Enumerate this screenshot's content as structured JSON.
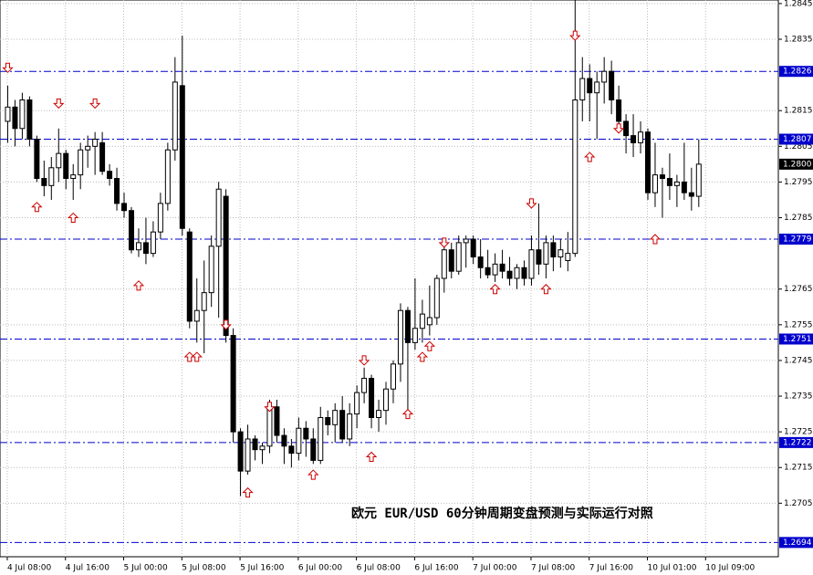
{
  "chart_data": {
    "type": "candlestick",
    "annotation": "欧元 EUR/USD   60分钟周期变盘预测与实际运行对照",
    "ylim": [
      1.269,
      1.2846
    ],
    "yticks": [
      1.2845,
      1.2835,
      1.2815,
      1.2805,
      1.2795,
      1.2785,
      1.2765,
      1.2755,
      1.2745,
      1.2735,
      1.2725,
      1.2715,
      1.2705
    ],
    "xlim": [
      -1,
      106
    ],
    "xticks": [
      {
        "value": 0,
        "label": "4 Jul 08:00"
      },
      {
        "value": 8,
        "label": "4 Jul 16:00"
      },
      {
        "value": 16,
        "label": "5 Jul 00:00"
      },
      {
        "value": 24,
        "label": "5 Jul 08:00"
      },
      {
        "value": 32,
        "label": "5 Jul 16:00"
      },
      {
        "value": 40,
        "label": "6 Jul 00:00"
      },
      {
        "value": 48,
        "label": "6 Jul 08:00"
      },
      {
        "value": 56,
        "label": "6 Jul 16:00"
      },
      {
        "value": 64,
        "label": "7 Jul 00:00"
      },
      {
        "value": 72,
        "label": "7 Jul 08:00"
      },
      {
        "value": 80,
        "label": "7 Jul 16:00"
      },
      {
        "value": 88,
        "label": "10 Jul 01:00"
      },
      {
        "value": 96,
        "label": "10 Jul 09:00"
      }
    ],
    "grid": true,
    "up_color": "#ffffff",
    "down_color": "#000000",
    "open": [
      1.2812,
      1.2816,
      1.281,
      1.2818,
      1.2807,
      1.2796,
      1.2794,
      1.2799,
      1.2803,
      1.2796,
      1.2797,
      1.2804,
      1.2805,
      1.2806,
      1.2798,
      1.2796,
      1.2789,
      1.2787,
      1.2776,
      1.2778,
      1.2775,
      1.2781,
      1.2789,
      1.2804,
      1.2822,
      1.2781,
      1.2756,
      1.2759,
      1.2764,
      1.2777,
      1.2791,
      1.2752,
      1.2725,
      1.2714,
      1.2723,
      1.272,
      1.2721,
      1.2732,
      1.2724,
      1.2721,
      1.2719,
      1.2726,
      1.2723,
      1.2717,
      1.2729,
      1.2727,
      1.2731,
      1.2723,
      1.273,
      1.2736,
      1.274,
      1.2729,
      1.2731,
      1.2737,
      1.2744,
      1.2759,
      1.275,
      1.2754,
      1.2755,
      1.2757,
      1.2768,
      1.2776,
      1.277,
      1.2778,
      1.2779,
      1.2774,
      1.2771,
      1.2769,
      1.2772,
      1.277,
      1.2768,
      1.2771,
      1.2768,
      1.2776,
      1.2772,
      1.2778,
      1.2774,
      1.2773,
      1.2775,
      1.2818,
      1.2824,
      1.282,
      1.2823,
      1.2826,
      1.2818,
      1.2812,
      1.2808,
      1.2806,
      1.2809,
      1.2792,
      1.2797,
      1.2796,
      1.2794,
      1.2795,
      1.2792,
      1.2791
    ],
    "high": [
      1.2822,
      1.2818,
      1.282,
      1.2819,
      1.2808,
      1.2801,
      1.2802,
      1.281,
      1.2804,
      1.28,
      1.2806,
      1.2808,
      1.2809,
      1.2809,
      1.28,
      1.2799,
      1.2792,
      1.2788,
      1.2782,
      1.2785,
      1.2784,
      1.2792,
      1.2806,
      1.283,
      1.2836,
      1.2782,
      1.2768,
      1.2773,
      1.278,
      1.2795,
      1.2793,
      1.2754,
      1.2726,
      1.2727,
      1.2724,
      1.2722,
      1.2734,
      1.2734,
      1.2726,
      1.2723,
      1.2729,
      1.2728,
      1.2726,
      1.2732,
      1.2731,
      1.2733,
      1.2735,
      1.2733,
      1.2738,
      1.2743,
      1.2741,
      1.2734,
      1.2739,
      1.2745,
      1.2761,
      1.276,
      1.2768,
      1.2762,
      1.2766,
      1.2769,
      1.2779,
      1.2778,
      1.278,
      1.278,
      1.278,
      1.2779,
      1.2776,
      1.2775,
      1.2776,
      1.2774,
      1.2772,
      1.2773,
      1.278,
      1.2789,
      1.278,
      1.278,
      1.2779,
      1.2781,
      1.2846,
      1.283,
      1.2828,
      1.2826,
      1.283,
      1.2829,
      1.2822,
      1.2814,
      1.2814,
      1.2812,
      1.281,
      1.2806,
      1.2799,
      1.2803,
      1.2797,
      1.2806,
      1.2799,
      1.2807
    ],
    "low": [
      1.2806,
      1.2805,
      1.2807,
      1.2805,
      1.2795,
      1.2791,
      1.279,
      1.2795,
      1.2793,
      1.279,
      1.2793,
      1.2799,
      1.2797,
      1.2797,
      1.2794,
      1.2787,
      1.2785,
      1.2775,
      1.2774,
      1.2772,
      1.2774,
      1.2779,
      1.2787,
      1.2801,
      1.278,
      1.2754,
      1.275,
      1.2747,
      1.276,
      1.2757,
      1.275,
      1.2722,
      1.2707,
      1.2713,
      1.2717,
      1.2716,
      1.2719,
      1.2722,
      1.2716,
      1.2715,
      1.2717,
      1.2718,
      1.2716,
      1.2716,
      1.2724,
      1.2722,
      1.2722,
      1.2721,
      1.2726,
      1.2733,
      1.2726,
      1.2725,
      1.2727,
      1.2733,
      1.2739,
      1.2731,
      1.2748,
      1.275,
      1.2752,
      1.2755,
      1.2764,
      1.2768,
      1.2769,
      1.2771,
      1.2772,
      1.2768,
      1.2768,
      1.2767,
      1.2768,
      1.2766,
      1.2765,
      1.2766,
      1.2766,
      1.2769,
      1.2768,
      1.277,
      1.2771,
      1.277,
      1.2774,
      1.2812,
      1.2812,
      1.2807,
      1.2817,
      1.2814,
      1.281,
      1.2803,
      1.2802,
      1.2803,
      1.279,
      1.2788,
      1.2785,
      1.279,
      1.2788,
      1.279,
      1.2787,
      1.2788
    ],
    "close": [
      1.2816,
      1.281,
      1.2818,
      1.2807,
      1.2796,
      1.2794,
      1.2799,
      1.2803,
      1.2796,
      1.2797,
      1.2804,
      1.2805,
      1.2807,
      1.2798,
      1.2796,
      1.2789,
      1.2787,
      1.2776,
      1.2778,
      1.2775,
      1.2781,
      1.2789,
      1.2804,
      1.2823,
      1.2782,
      1.2756,
      1.2759,
      1.2764,
      1.2777,
      1.2793,
      1.2752,
      1.2725,
      1.2714,
      1.2723,
      1.272,
      1.2721,
      1.2732,
      1.2724,
      1.2721,
      1.2719,
      1.2726,
      1.2723,
      1.2717,
      1.2729,
      1.2727,
      1.2731,
      1.2723,
      1.273,
      1.2736,
      1.274,
      1.2729,
      1.2731,
      1.2737,
      1.2744,
      1.2759,
      1.275,
      1.2754,
      1.2758,
      1.2757,
      1.2768,
      1.2776,
      1.277,
      1.2778,
      1.2779,
      1.2774,
      1.2771,
      1.2769,
      1.2772,
      1.277,
      1.2768,
      1.2771,
      1.2768,
      1.2776,
      1.2772,
      1.2778,
      1.2774,
      1.2776,
      1.2775,
      1.2818,
      1.2824,
      1.282,
      1.2823,
      1.2826,
      1.2818,
      1.2812,
      1.2808,
      1.2806,
      1.2809,
      1.2792,
      1.2797,
      1.2796,
      1.2794,
      1.2795,
      1.2792,
      1.2791,
      1.28
    ],
    "levels": [
      1.2826,
      1.2807,
      1.2779,
      1.2751,
      1.2722,
      1.2694
    ],
    "level_color": "#0000cc",
    "last_price": {
      "value": 1.28,
      "label": "1.2800"
    },
    "signal_color": "#cc0000",
    "down_signals": {
      "x": [
        0,
        7,
        12,
        30,
        36,
        49,
        60,
        72,
        78,
        84
      ],
      "y": [
        1.2827,
        1.2817,
        1.2817,
        1.2755,
        1.2732,
        1.2745,
        1.2778,
        1.2789,
        1.2836,
        1.281
      ]
    },
    "up_signals": {
      "x": [
        4,
        9,
        18,
        25,
        26,
        33,
        42,
        50,
        55,
        57,
        58,
        67,
        74,
        80,
        89
      ],
      "y": [
        1.2788,
        1.2785,
        1.2766,
        1.2746,
        1.2746,
        1.2708,
        1.2713,
        1.2718,
        1.273,
        1.2746,
        1.2749,
        1.2765,
        1.2765,
        1.2802,
        1.2779
      ]
    }
  }
}
